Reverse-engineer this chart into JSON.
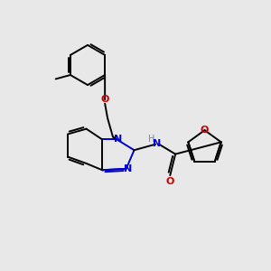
{
  "background_color": "#e8e8e8",
  "bond_color": "#000000",
  "N_color": "#0000cc",
  "O_color": "#cc0000",
  "H_color": "#778899",
  "line_width": 1.4,
  "fig_width": 3.0,
  "fig_height": 3.0,
  "dpi": 100,
  "xlim": [
    0,
    10
  ],
  "ylim": [
    0,
    10
  ]
}
